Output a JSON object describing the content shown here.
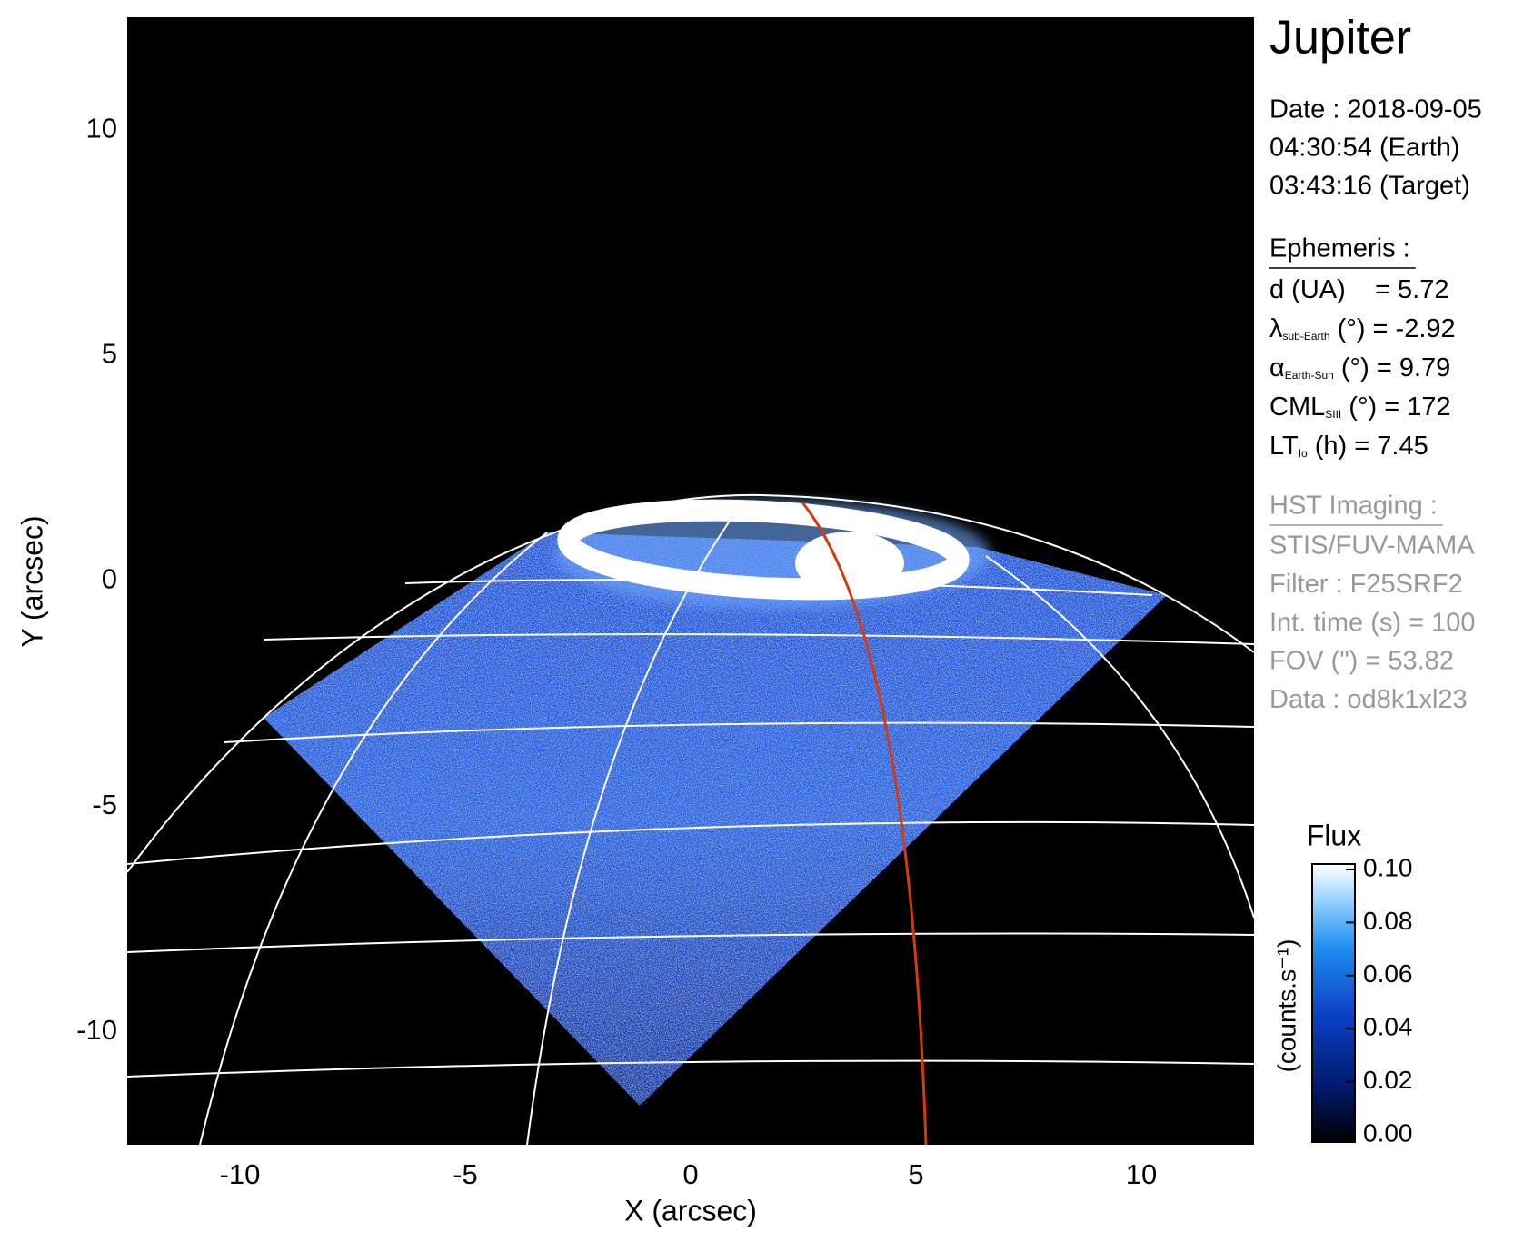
{
  "chart_data": {
    "type": "image",
    "xlabel": "X (arcsec)",
    "ylabel": "Y (arcsec)",
    "xlim": [
      -12.5,
      12.5
    ],
    "ylim": [
      -12.5,
      12.5
    ],
    "xticks": [
      -10,
      -5,
      0,
      5,
      10
    ],
    "yticks": [
      -10,
      -5,
      0,
      5,
      10
    ],
    "colorbar": {
      "title": "Flux",
      "label": "(counts.s⁻¹)",
      "clim": [
        0,
        0.1
      ],
      "ticks": [
        {
          "value": 0,
          "label": "0.00"
        },
        {
          "value": 0.02,
          "label": "0.02"
        },
        {
          "value": 0.04,
          "label": "0.04"
        },
        {
          "value": 0.06,
          "label": "0.06"
        },
        {
          "value": 0.08,
          "label": "0.08"
        },
        {
          "value": 0.1,
          "label": "0.10"
        }
      ]
    }
  },
  "info": {
    "target": "Jupiter",
    "date": [
      "Date : 2018-09-05",
      "04:30:54 (Earth)",
      "03:43:16 (Target)"
    ],
    "ephemeris_title": "Ephemeris :",
    "ephemeris": [
      {
        "main": "d (UA)    = 5.72"
      },
      {
        "main": "λ",
        "sub": "sub-Earth",
        "rest": " (°) = -2.92"
      },
      {
        "main": "α",
        "sub": "Earth-Sun",
        "rest": " (°) = 9.79"
      },
      {
        "main": "CML",
        "sub": "SIII",
        "rest": " (°) = 172"
      },
      {
        "main": "LT",
        "sub": "Io",
        "rest": " (h) = 7.45"
      }
    ],
    "imaging_title": "HST Imaging :",
    "imaging": [
      "STIS/FUV-MAMA",
      "Filter : F25SRF2",
      "Int. time (s) = 100",
      "FOV (\") = 53.82",
      "Data : od8k1xl23"
    ]
  }
}
